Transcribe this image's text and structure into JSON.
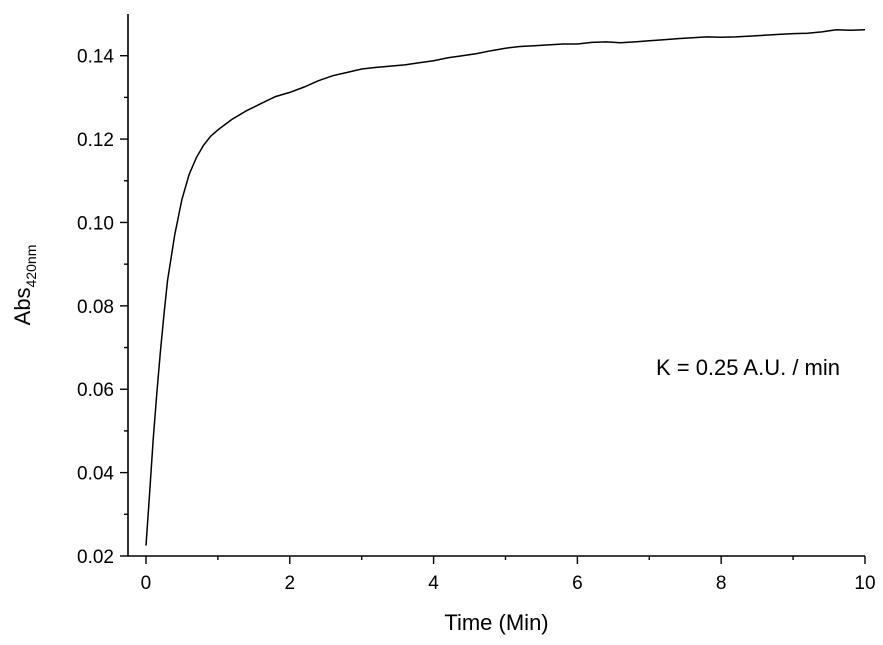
{
  "chart_data": {
    "type": "line",
    "xlabel": "Time (Min)",
    "ylabel": "Abs",
    "ylabel_subscript": "420nm",
    "xlim": [
      -0.25,
      10
    ],
    "ylim": [
      0.02,
      0.15
    ],
    "x_ticks": [
      0,
      2,
      4,
      6,
      8,
      10
    ],
    "x_tick_labels": [
      "0",
      "2",
      "4",
      "6",
      "8",
      "10"
    ],
    "y_ticks": [
      0.02,
      0.04,
      0.06,
      0.08,
      0.1,
      0.12,
      0.14
    ],
    "y_tick_labels": [
      "0.02",
      "0.04",
      "0.06",
      "0.08",
      "0.10",
      "0.12",
      "0.14"
    ],
    "annotation": "K = 0.25 A.U. / min",
    "grid": false,
    "series": [
      {
        "color": "#000000",
        "x": [
          0,
          0.05,
          0.1,
          0.15,
          0.2,
          0.25,
          0.3,
          0.4,
          0.5,
          0.6,
          0.7,
          0.8,
          0.9,
          1.0,
          1.1,
          1.2,
          1.4,
          1.6,
          1.8,
          2.0,
          2.2,
          2.4,
          2.6,
          2.8,
          3.0,
          3.2,
          3.4,
          3.6,
          3.8,
          4.0,
          4.2,
          4.4,
          4.6,
          4.8,
          5.0,
          5.2,
          5.4,
          5.6,
          5.8,
          6.0,
          6.2,
          6.4,
          6.6,
          6.8,
          7.0,
          7.2,
          7.4,
          7.6,
          7.8,
          8.0,
          8.2,
          8.4,
          8.6,
          8.8,
          9.0,
          9.2,
          9.4,
          9.6,
          9.8,
          10.0
        ],
        "y": [
          0.0225,
          0.035,
          0.048,
          0.059,
          0.069,
          0.078,
          0.086,
          0.097,
          0.1055,
          0.1115,
          0.1155,
          0.1185,
          0.1207,
          0.1222,
          0.1235,
          0.1248,
          0.1268,
          0.1285,
          0.1302,
          0.1312,
          0.1325,
          0.134,
          0.1352,
          0.136,
          0.1368,
          0.1372,
          0.1375,
          0.1378,
          0.1383,
          0.1388,
          0.1395,
          0.14,
          0.1405,
          0.1412,
          0.1418,
          0.1422,
          0.1424,
          0.1426,
          0.1428,
          0.1428,
          0.1432,
          0.1433,
          0.1431,
          0.1433,
          0.1436,
          0.1438,
          0.1441,
          0.1443,
          0.1445,
          0.1444,
          0.1445,
          0.1447,
          0.1449,
          0.1451,
          0.1453,
          0.1454,
          0.1457,
          0.1462,
          0.1461,
          0.1462
        ]
      }
    ]
  }
}
